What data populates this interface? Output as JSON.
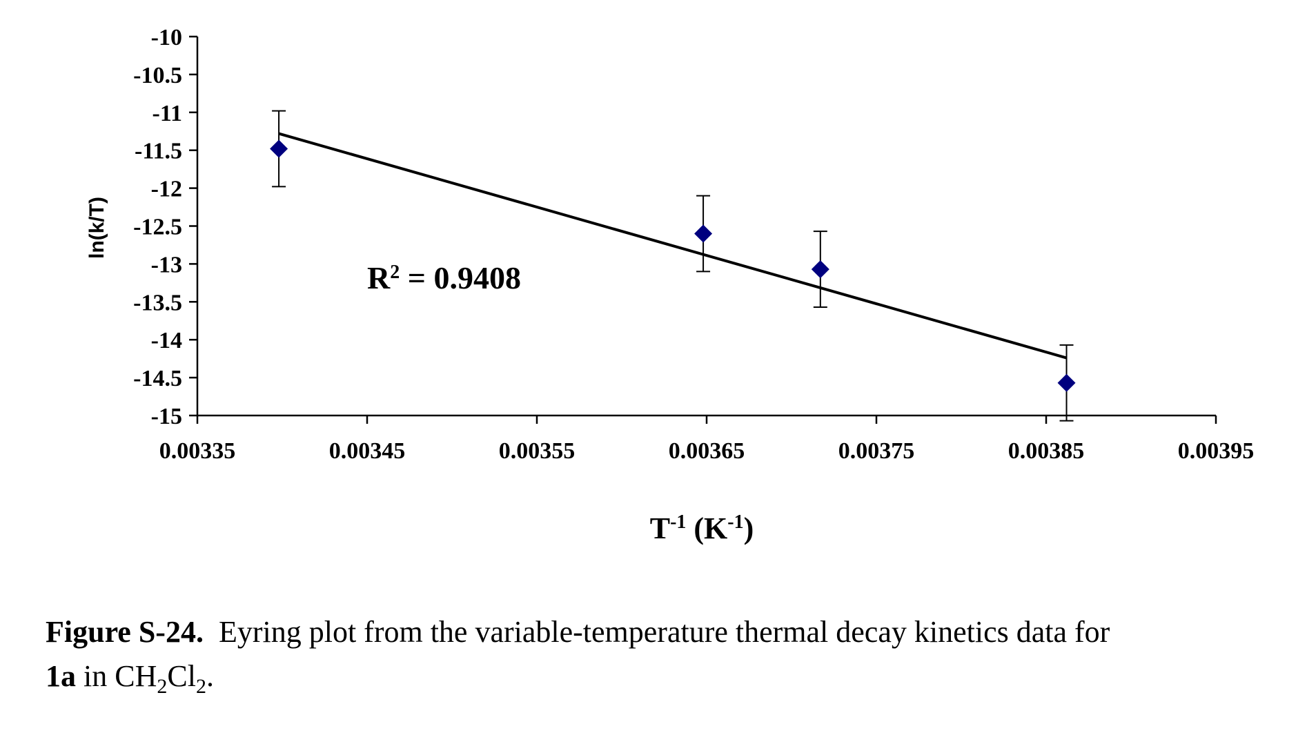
{
  "chart_data": {
    "type": "scatter",
    "title": "",
    "ylabel": "ln(k/T)",
    "xlabel": {
      "base": "T",
      "sup": "-1",
      "unit_open": " (K",
      "unit_sup": "-1",
      "unit_close": ")"
    },
    "xlim": [
      0.00335,
      0.00395
    ],
    "ylim": [
      -15,
      -10
    ],
    "x_ticks": [
      0.00335,
      0.00345,
      0.00355,
      0.00365,
      0.00375,
      0.00385,
      0.00395
    ],
    "x_tick_labels": [
      "0.00335",
      "0.00345",
      "0.00355",
      "0.00365",
      "0.00375",
      "0.00385",
      "0.00395"
    ],
    "y_ticks": [
      -10,
      -10.5,
      -11,
      -11.5,
      -12,
      -12.5,
      -13,
      -13.5,
      -14,
      -14.5,
      -15
    ],
    "y_tick_labels": [
      "-10",
      "-10.5",
      "-11",
      "-11.5",
      "-12",
      "-12.5",
      "-13",
      "-13.5",
      "-14",
      "-14.5",
      "-15"
    ],
    "grid": false,
    "marker_color": "#00007f",
    "line_color": "#000000",
    "points": [
      {
        "x": 0.003398,
        "y": -11.48,
        "err": 0.5
      },
      {
        "x": 0.003648,
        "y": -12.6,
        "err": 0.5
      },
      {
        "x": 0.003717,
        "y": -13.07,
        "err": 0.5
      },
      {
        "x": 0.003862,
        "y": -14.57,
        "err": 0.5
      }
    ],
    "trendline": {
      "x": [
        0.003398,
        0.003862
      ],
      "y": [
        -11.28,
        -14.24
      ]
    },
    "annotation": {
      "base": "R",
      "sup": "2",
      "rest": " = 0.9408"
    }
  },
  "caption": {
    "label": "Figure S-24.",
    "text": "Eyring plot from the variable-temperature thermal decay kinetics data for",
    "compound": "1a",
    "in_text": " in CH",
    "sub1": "2",
    "cl": "Cl",
    "sub2": "2",
    "end": "."
  }
}
